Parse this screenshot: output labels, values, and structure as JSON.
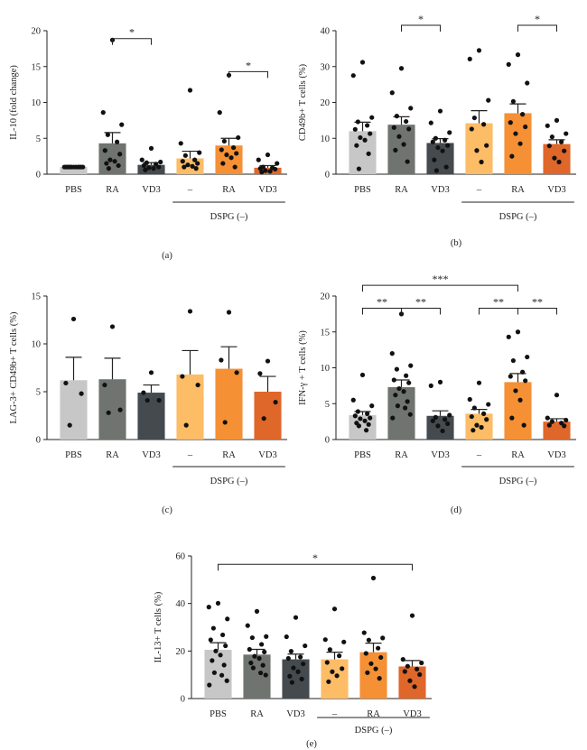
{
  "chart_data": [
    {
      "type": "bar",
      "panel": "(a)",
      "ylabel": "IL-10 (fold change)",
      "ylim": [
        0,
        20
      ],
      "yticks": [
        0,
        5,
        10,
        15,
        20
      ],
      "categories": [
        "PBS",
        "RA",
        "VD3",
        "–",
        "RA",
        "VD3"
      ],
      "group_label": "DSPG (–)",
      "group_span": [
        3,
        5
      ],
      "colors": [
        "#c7c7c7",
        "#6f7470",
        "#444a4e",
        "#fdbc66",
        "#f59035",
        "#e0672a"
      ],
      "values": [
        1.0,
        4.3,
        1.3,
        2.2,
        4.0,
        0.9
      ],
      "errors": [
        0.05,
        1.5,
        0.3,
        1.0,
        1.0,
        0.3
      ],
      "points": [
        [
          1,
          1,
          1,
          1,
          1,
          1,
          1,
          1,
          1,
          1,
          1,
          1
        ],
        [
          18.7,
          8.6,
          6.9,
          5.5,
          4.5,
          3.3,
          2.8,
          2.0,
          1.8,
          1.5,
          1.2,
          0.8
        ],
        [
          3.6,
          2.0,
          1.7,
          1.6,
          1.4,
          1.2,
          1.0,
          0.9,
          0.8,
          0.6
        ],
        [
          11.7,
          4.3,
          3.0,
          2.6,
          2.0,
          1.8,
          1.5,
          1.3,
          1.1,
          1.0,
          0.8
        ],
        [
          13.8,
          8.6,
          5.1,
          4.6,
          3.7,
          3.4,
          2.9,
          2.7,
          2.3,
          1.5,
          1.0
        ],
        [
          2.7,
          2.0,
          1.5,
          1.0,
          0.9,
          0.8,
          0.7,
          0.5,
          0.4,
          0.3
        ]
      ],
      "significance": [
        {
          "from": 1,
          "to": 2,
          "y": 18.9,
          "label": "*"
        },
        {
          "from": 4,
          "to": 5,
          "y": 14.3,
          "label": "*"
        }
      ]
    },
    {
      "type": "bar",
      "panel": "(b)",
      "ylabel": "CD49b+ T cells (%)",
      "ylim": [
        0,
        40
      ],
      "yticks": [
        0,
        10,
        20,
        30,
        40
      ],
      "categories": [
        "PBS",
        "RA",
        "VD3",
        "–",
        "RA",
        "VD3"
      ],
      "group_label": "DSPG (–)",
      "group_span": [
        3,
        5
      ],
      "colors": [
        "#c7c7c7",
        "#6f7470",
        "#444a4e",
        "#fdbc66",
        "#f59035",
        "#e0672a"
      ],
      "values": [
        12.0,
        13.8,
        8.7,
        14.2,
        17.0,
        8.4
      ],
      "errors": [
        2.5,
        2.2,
        1.2,
        3.5,
        2.6,
        1.2
      ],
      "points": [
        [
          31.2,
          27.5,
          15.8,
          14.6,
          13.6,
          12.5,
          11.3,
          10.2,
          9.5,
          8.0,
          5.7,
          1.5
        ],
        [
          29.5,
          22.7,
          18.4,
          16.2,
          14.7,
          13.0,
          12.6,
          10.5,
          8.3,
          6.7,
          3.5
        ],
        [
          17.6,
          14.3,
          11.6,
          10.0,
          9.5,
          9.0,
          8.0,
          7.4,
          6.5,
          4.0,
          2.0,
          1.0
        ],
        [
          34.5,
          32.1,
          20.6,
          15.7,
          13.9,
          12.6,
          8.0,
          6.6,
          3.4
        ],
        [
          33.3,
          30.6,
          25.4,
          20.3,
          16.7,
          14.4,
          13.2,
          11.3,
          8.5,
          5.0
        ],
        [
          15.0,
          13.5,
          11.3,
          10.4,
          9.0,
          7.9,
          6.5,
          4.5,
          3.4
        ]
      ],
      "significance": [
        {
          "from": 1,
          "to": 2,
          "y": 41.5,
          "label": "*"
        },
        {
          "from": 4,
          "to": 5,
          "y": 41.5,
          "label": "*"
        }
      ]
    },
    {
      "type": "bar",
      "panel": "(c)",
      "ylabel": "LAG-3+ CD49b+ T cells (%)",
      "ylim": [
        0,
        15
      ],
      "yticks": [
        0,
        5,
        10,
        15
      ],
      "categories": [
        "PBS",
        "RA",
        "VD3",
        "–",
        "RA",
        "VD3"
      ],
      "group_label": "DSPG (–)",
      "group_span": [
        3,
        5
      ],
      "colors": [
        "#c7c7c7",
        "#6f7470",
        "#444a4e",
        "#fdbc66",
        "#f59035",
        "#e0672a"
      ],
      "values": [
        6.2,
        6.3,
        4.9,
        6.8,
        7.4,
        5.0
      ],
      "errors": [
        2.4,
        2.2,
        0.8,
        2.5,
        2.3,
        1.6
      ],
      "points": [
        [
          12.6,
          5.9,
          4.8,
          1.5
        ],
        [
          11.8,
          5.7,
          3.1,
          2.8
        ],
        [
          7.0,
          4.9,
          4.1,
          4.1
        ],
        [
          13.4,
          6.6,
          5.7,
          1.5
        ],
        [
          13.3,
          8.3,
          7.0,
          1.8
        ],
        [
          8.2,
          6.9,
          3.9,
          2.2
        ]
      ],
      "significance": []
    },
    {
      "type": "bar",
      "panel": "(d)",
      "ylabel": "IFN-γ + T cells (%)",
      "ylim": [
        0,
        20
      ],
      "yticks": [
        0,
        5,
        10,
        15,
        20
      ],
      "categories": [
        "PBS",
        "RA",
        "VD3",
        "–",
        "RA",
        "VD3"
      ],
      "group_label": "DSPG (–)",
      "group_span": [
        3,
        5
      ],
      "colors": [
        "#c7c7c7",
        "#6f7470",
        "#444a4e",
        "#fdbc66",
        "#f59035",
        "#e0672a"
      ],
      "values": [
        3.4,
        7.3,
        3.3,
        3.6,
        8.0,
        2.5
      ],
      "errors": [
        0.5,
        1.0,
        0.7,
        0.6,
        1.2,
        0.4
      ],
      "points": [
        [
          9.0,
          5.5,
          4.7,
          3.9,
          3.6,
          3.3,
          3.0,
          2.9,
          2.6,
          2.3,
          2.1,
          1.9,
          1.3
        ],
        [
          17.5,
          12.0,
          10.3,
          9.8,
          8.9,
          8.3,
          7.9,
          7.1,
          6.7,
          6.2,
          5.3,
          4.7,
          4.4,
          3.5,
          3.0
        ],
        [
          8.0,
          7.5,
          3.4,
          3.1,
          2.8,
          2.6,
          2.2,
          1.9,
          1.2
        ],
        [
          7.9,
          5.6,
          4.9,
          4.4,
          3.6,
          3.2,
          2.8,
          2.0,
          1.7,
          1.3
        ],
        [
          15.0,
          14.3,
          11.5,
          11.0,
          9.4,
          8.8,
          8.2,
          6.8,
          5.5,
          3.0,
          2.0
        ],
        [
          6.2,
          3.0,
          2.7,
          2.5,
          2.3,
          2.0,
          1.9
        ]
      ],
      "significance": [
        {
          "from": 0,
          "to": 1,
          "y": 18.3,
          "label": "**"
        },
        {
          "from": 1,
          "to": 2,
          "y": 18.3,
          "label": "**"
        },
        {
          "from": 3,
          "to": 4,
          "y": 18.3,
          "label": "**"
        },
        {
          "from": 4,
          "to": 5,
          "y": 18.3,
          "label": "**"
        },
        {
          "from": 0,
          "to": 4,
          "y": 21.5,
          "label": "***"
        }
      ]
    },
    {
      "type": "bar",
      "panel": "(e)",
      "ylabel": "IL-13+ T cells (%)",
      "ylim": [
        0,
        60
      ],
      "yticks": [
        0,
        20,
        40,
        60
      ],
      "categories": [
        "PBS",
        "RA",
        "VD3",
        "–",
        "RA",
        "VD3"
      ],
      "group_label": "DSPG (–)",
      "group_span": [
        3,
        5
      ],
      "colors": [
        "#c7c7c7",
        "#6f7470",
        "#444a4e",
        "#fdbc66",
        "#f59035",
        "#e0672a"
      ],
      "values": [
        20.5,
        18.5,
        16.5,
        16.5,
        19.5,
        13.5
      ],
      "errors": [
        3.0,
        2.2,
        2.2,
        3.0,
        3.8,
        2.5
      ],
      "points": [
        [
          40.1,
          38.5,
          33.5,
          29.6,
          26.8,
          24.7,
          22.2,
          20.0,
          18.3,
          16.0,
          14.1,
          10.9,
          9.8,
          7.5,
          5.7
        ],
        [
          36.7,
          30.7,
          26.1,
          25.6,
          22.8,
          20.7,
          19.6,
          17.8,
          16.9,
          15.0,
          14.0,
          12.9,
          10.8,
          9.9
        ],
        [
          34.1,
          26.0,
          22.2,
          19.9,
          17.5,
          16.9,
          14.6,
          12.9,
          11.3,
          9.4,
          8.2,
          6.8
        ],
        [
          37.7,
          24.8,
          23.8,
          20.6,
          18.0,
          15.2,
          12.6,
          11.3,
          9.6,
          7.1
        ],
        [
          50.7,
          27.7,
          25.5,
          24.6,
          21.2,
          19.0,
          17.3,
          14.7,
          12.5,
          10.9,
          8.5
        ],
        [
          34.9,
          16.5,
          15.0,
          13.6,
          12.4,
          11.4,
          10.1,
          7.5,
          5.0
        ]
      ],
      "significance": [
        {
          "from": 0,
          "to": 5,
          "y": 56.5,
          "label": "*"
        }
      ]
    }
  ]
}
